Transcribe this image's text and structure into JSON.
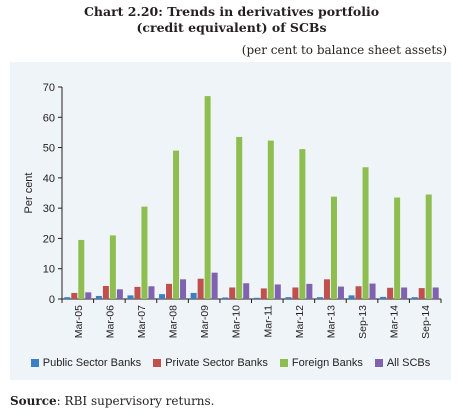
{
  "title_line1": "Chart 2.20: Trends in derivatives portfolio",
  "title_line2": "(credit equivalent) of SCBs",
  "subtitle": "(per cent to balance sheet assets)",
  "source_label": "Source",
  "source_text": ": RBI supervisory returns.",
  "colors": {
    "Public Sector Banks": "#3b7fc4",
    "Private Sector Banks": "#c0504d",
    "Foreign Banks": "#8fbe50",
    "All SCBs": "#7f62b0"
  },
  "chart_data": {
    "type": "bar",
    "ylabel": "Per cent",
    "ylim": [
      0,
      70
    ],
    "yticks": [
      0,
      10,
      20,
      30,
      40,
      50,
      60,
      70
    ],
    "grid": false,
    "legend": "bottom",
    "categories": [
      "Mar-05",
      "Mar-06",
      "Mar-07",
      "Mar-08",
      "Mar-09",
      "Mar-10",
      "Mar-11",
      "Mar-12",
      "Mar-13",
      "Sep-13",
      "Mar-14",
      "Sep-14"
    ],
    "series": [
      {
        "name": "Public Sector Banks",
        "values": [
          0.6,
          1.0,
          1.2,
          1.6,
          2.0,
          0.5,
          0.4,
          0.6,
          0.6,
          1.2,
          0.7,
          0.6
        ]
      },
      {
        "name": "Private Sector Banks",
        "values": [
          2.0,
          4.3,
          4.0,
          5.0,
          6.7,
          3.8,
          3.5,
          3.8,
          6.5,
          4.2,
          3.7,
          3.6
        ]
      },
      {
        "name": "Foreign Banks",
        "values": [
          19.5,
          21.0,
          30.5,
          49.0,
          67.0,
          53.5,
          52.3,
          49.5,
          33.8,
          43.5,
          33.5,
          34.5
        ]
      },
      {
        "name": "All SCBs",
        "values": [
          2.2,
          3.2,
          4.2,
          6.5,
          8.7,
          5.2,
          4.8,
          5.0,
          4.1,
          5.1,
          3.8,
          3.8
        ]
      }
    ]
  }
}
